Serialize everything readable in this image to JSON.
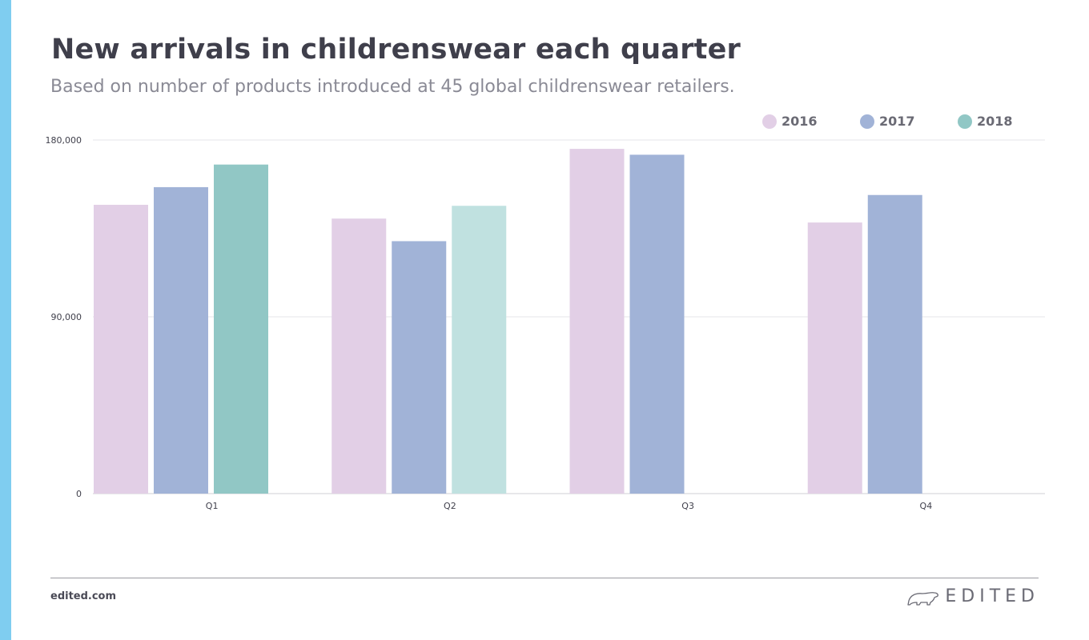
{
  "title": "New arrivals in childrenswear each quarter",
  "subtitle": "Based on number of products introduced at 45 global childrenswear retailers.",
  "footer": {
    "url": "edited.com",
    "brand": "EDITED"
  },
  "colors": {
    "accent_bar": "#7fcdf0",
    "series_2016": "#e2cfe6",
    "series_2017": "#a1b3d7",
    "series_2018": "#91c7c5",
    "series_2018_q2": "#c0e1e0"
  },
  "chart_data": {
    "type": "bar",
    "categories": [
      "Q1",
      "Q2",
      "Q3",
      "Q4"
    ],
    "series": [
      {
        "name": "2016",
        "values": [
          147000,
          140000,
          175500,
          138000
        ]
      },
      {
        "name": "2017",
        "values": [
          156000,
          128500,
          172500,
          152000
        ]
      },
      {
        "name": "2018",
        "values": [
          167500,
          146500,
          null,
          null
        ]
      }
    ],
    "yticks": [
      0,
      90000,
      180000
    ],
    "ytick_labels": [
      "0",
      "90,000",
      "180,000"
    ],
    "ylim": [
      0,
      180000
    ],
    "legend_position": "top-right",
    "grid": true
  }
}
